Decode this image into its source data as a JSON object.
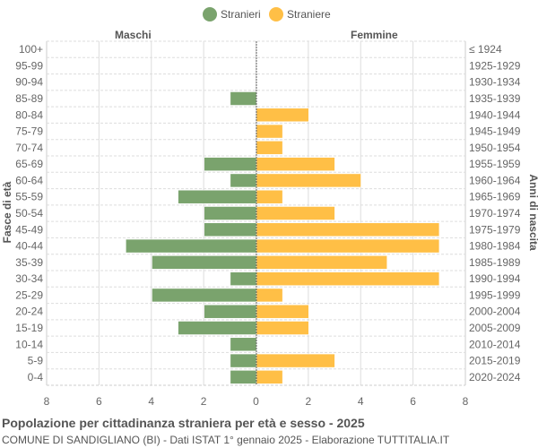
{
  "legend": {
    "items": [
      {
        "label": "Stranieri",
        "color": "#7aa36d"
      },
      {
        "label": "Straniere",
        "color": "#ffbf46"
      }
    ]
  },
  "labels": {
    "left_side": "Maschi",
    "right_side": "Femmine",
    "left_axis": "Fasce di età",
    "right_axis": "Anni di nascita"
  },
  "footer": {
    "title": "Popolazione per cittadinanza straniera per età e sesso - 2025",
    "subtitle": "COMUNE DI SANDIGLIANO (BI) - Dati ISTAT 1° gennaio 2025 - Elaborazione TUTTITALIA.IT"
  },
  "chart_data": {
    "type": "bar",
    "orientation": "horizontal-pyramid",
    "title": "Popolazione per cittadinanza straniera per età e sesso - 2025",
    "subtitle": "COMUNE DI SANDIGLIANO (BI) - Dati ISTAT 1° gennaio 2025 - Elaborazione TUTTITALIA.IT",
    "categories": [
      "100+",
      "95-99",
      "90-94",
      "85-89",
      "80-84",
      "75-79",
      "70-74",
      "65-69",
      "60-64",
      "55-59",
      "50-54",
      "45-49",
      "40-44",
      "35-39",
      "30-34",
      "25-29",
      "20-24",
      "15-19",
      "10-14",
      "5-9",
      "0-4"
    ],
    "birth_years": [
      "≤ 1924",
      "1925-1929",
      "1930-1934",
      "1935-1939",
      "1940-1944",
      "1945-1949",
      "1950-1954",
      "1955-1959",
      "1960-1964",
      "1965-1969",
      "1970-1974",
      "1975-1979",
      "1980-1984",
      "1985-1989",
      "1990-1994",
      "1995-1999",
      "2000-2004",
      "2005-2009",
      "2010-2014",
      "2015-2019",
      "2020-2024"
    ],
    "series": [
      {
        "name": "Stranieri",
        "side": "Maschi",
        "color": "#7aa36d",
        "values": [
          0,
          0,
          0,
          1,
          0,
          0,
          0,
          2,
          1,
          3,
          2,
          2,
          5,
          4,
          1,
          4,
          2,
          3,
          1,
          1,
          1
        ]
      },
      {
        "name": "Straniere",
        "side": "Femmine",
        "color": "#ffbf46",
        "values": [
          0,
          0,
          0,
          0,
          2,
          1,
          1,
          3,
          4,
          1,
          3,
          7,
          7,
          5,
          7,
          1,
          2,
          2,
          0,
          3,
          1
        ]
      }
    ],
    "xlabel": "",
    "ylabel": "Fasce di età",
    "ylabel_right": "Anni di nascita",
    "x_ticks": [
      8,
      6,
      4,
      2,
      0,
      2,
      4,
      6,
      8
    ],
    "xlim": [
      -8,
      8
    ],
    "grid": true,
    "legend_position": "top"
  }
}
